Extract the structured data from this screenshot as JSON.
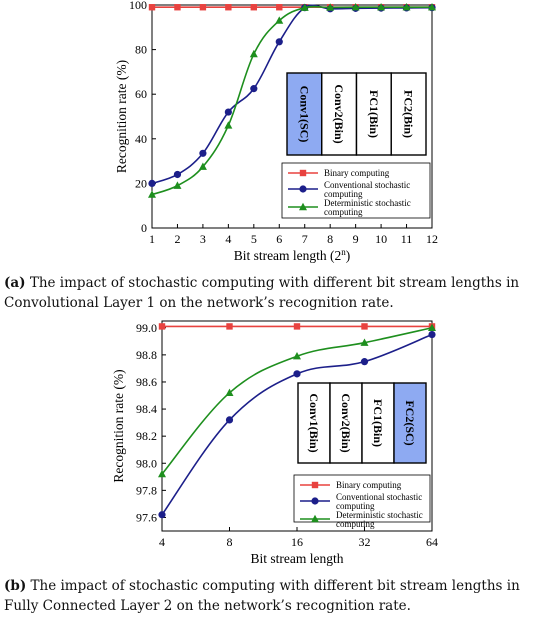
{
  "chart_data": [
    {
      "type": "line",
      "xlabel_main": "Bit stream length",
      "xlabel_unit": "(2",
      "xlabel_exp": "n",
      "xlabel_close": ")",
      "ylabel": "Recognition rate (%)",
      "x": [
        1,
        2,
        3,
        4,
        5,
        6,
        7,
        8,
        9,
        10,
        11,
        12
      ],
      "xlim": [
        1,
        12
      ],
      "ylim": [
        0,
        100
      ],
      "xticks": [
        "1",
        "2",
        "3",
        "4",
        "5",
        "6",
        "7",
        "8",
        "9",
        "10",
        "11",
        "12"
      ],
      "yticks": [
        0,
        20,
        40,
        60,
        80,
        100
      ],
      "series": [
        {
          "name": "Binary computing",
          "color": "#e8423f",
          "marker": "square",
          "values": [
            99,
            99,
            99,
            99,
            99,
            99,
            99,
            99,
            99,
            99,
            99,
            99
          ]
        },
        {
          "name": "Conventional stochastic computing",
          "color": "#1c1f8a",
          "marker": "circle",
          "values": [
            20,
            24,
            33.5,
            52,
            62.5,
            83.5,
            98.8,
            98.3,
            98.5,
            98.6,
            98.7,
            98.8
          ]
        },
        {
          "name": "Deterministic stochastic computing",
          "color": "#1e8f1e",
          "marker": "triangle",
          "values": [
            15,
            19,
            27.5,
            46,
            78,
            93,
            98.8,
            98.9,
            99,
            99,
            99,
            99
          ]
        }
      ],
      "layers": [
        {
          "label": "Conv1(SC)",
          "highlight": true
        },
        {
          "label": "Conv2(Bin)",
          "highlight": false
        },
        {
          "label": "FC1(Bin)",
          "highlight": false
        },
        {
          "label": "FC2(Bin)",
          "highlight": false
        }
      ],
      "legend_position": "lower-right",
      "grid": false
    },
    {
      "type": "line",
      "xlabel": "Bit stream length",
      "ylabel": "Recognition rate (%)",
      "x": [
        4,
        8,
        16,
        32,
        64
      ],
      "xscale": "log2",
      "xlim": [
        4,
        64
      ],
      "ylim": [
        97.5,
        99.05
      ],
      "xticks": [
        "4",
        "8",
        "16",
        "32",
        "64"
      ],
      "yticks": [
        "97.6",
        "97.8",
        "98.0",
        "98.2",
        "98.4",
        "98.6",
        "98.8",
        "99.0"
      ],
      "series": [
        {
          "name": "Binary computing",
          "color": "#e8423f",
          "marker": "square",
          "values": [
            99.01,
            99.01,
            99.01,
            99.01,
            99.01
          ]
        },
        {
          "name": "Conventional stochastic computing",
          "color": "#1c1f8a",
          "marker": "circle",
          "values": [
            97.62,
            98.32,
            98.66,
            98.75,
            98.95
          ]
        },
        {
          "name": "Deterministic stochastic computing",
          "color": "#1e8f1e",
          "marker": "triangle",
          "values": [
            97.92,
            98.52,
            98.79,
            98.89,
            99.0
          ]
        }
      ],
      "layers": [
        {
          "label": "Conv1(Bin)",
          "highlight": false
        },
        {
          "label": "Conv2(Bin)",
          "highlight": false
        },
        {
          "label": "FC1(Bin)",
          "highlight": false
        },
        {
          "label": "FC2(SC)",
          "highlight": true
        }
      ],
      "legend_position": "lower-right",
      "grid": false
    }
  ],
  "captions": {
    "a_label": "(a)",
    "a_text": " The impact of stochastic computing with different bit stream lengths in Convolutional Layer 1 on the network’s recognition rate.",
    "b_label": "(b)",
    "b_text": " The impact of stochastic computing with different bit stream lengths in Fully Connected Layer 2 on the network’s recognition rate."
  },
  "colors": {
    "highlight_box": "#8eaaf2",
    "axis": "#000000"
  }
}
